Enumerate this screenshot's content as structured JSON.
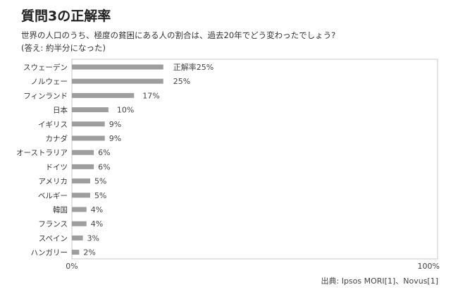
{
  "chart_data": {
    "type": "bar",
    "orientation": "horizontal",
    "title": "質問3の正解率",
    "subtitle": "世界の人口のうち、極度の貧困にある人の割合は、過去20年でどう変わったでしょう?",
    "answer_note": "(答え: 約半分になった)",
    "categories": [
      "スウェーデン",
      "ノルウェー",
      "フィンランド",
      "日本",
      "イギリス",
      "カナダ",
      "オーストラリア",
      "ドイツ",
      "アメリカ",
      "ベルギー",
      "韓国",
      "フランス",
      "スペイン",
      "ハンガリー"
    ],
    "values": [
      25,
      25,
      17,
      10,
      9,
      9,
      6,
      6,
      5,
      5,
      4,
      4,
      3,
      2
    ],
    "value_labels": [
      "正解率25%",
      "25%",
      "17%",
      "10%",
      "9%",
      "9%",
      "6%",
      "6%",
      "5%",
      "5%",
      "4%",
      "4%",
      "3%",
      "2%"
    ],
    "xlim": [
      0,
      100
    ],
    "x_tick_labels": [
      "0%",
      "100%"
    ],
    "bar_color": "#9e9e9e",
    "grid": false,
    "legend": "none",
    "source": "出典: Ipsos MORI[1]、Novus[1]"
  }
}
